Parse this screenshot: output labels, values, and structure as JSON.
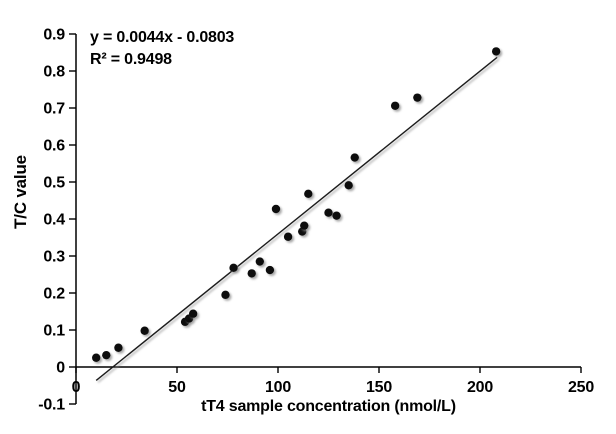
{
  "chart_data": {
    "type": "scatter",
    "title": "",
    "xlabel": "tT4 sample concentration (nmol/L)",
    "ylabel": "T/C value",
    "xlim": [
      0,
      250
    ],
    "ylim": [
      -0.1,
      0.9
    ],
    "grid": false,
    "legend": "none",
    "x_ticks": {
      "values": [
        0,
        50,
        100,
        150,
        200,
        250
      ],
      "labels": [
        "0",
        "50",
        "100",
        "150",
        "200",
        "250"
      ]
    },
    "y_ticks": {
      "values": [
        -0.1,
        0,
        0.1,
        0.2,
        0.3,
        0.4,
        0.5,
        0.6,
        0.7,
        0.8,
        0.9
      ],
      "labels": [
        "-0.1",
        "0",
        "0.1",
        "0.2",
        "0.3",
        "0.4",
        "0.5",
        "0.6",
        "0.7",
        "0.8",
        "0.9"
      ]
    },
    "marker": {
      "shape": "circle",
      "color": "#0a0a0a",
      "radius_px": 4.2
    },
    "axis_color": "#000000",
    "points": [
      [
        10,
        0.025
      ],
      [
        15,
        0.032
      ],
      [
        21,
        0.052
      ],
      [
        34,
        0.098
      ],
      [
        54,
        0.122
      ],
      [
        56,
        0.131
      ],
      [
        58,
        0.144
      ],
      [
        74,
        0.195
      ],
      [
        78,
        0.268
      ],
      [
        87,
        0.253
      ],
      [
        91,
        0.285
      ],
      [
        96,
        0.262
      ],
      [
        99,
        0.427
      ],
      [
        105,
        0.352
      ],
      [
        112,
        0.366
      ],
      [
        113,
        0.382
      ],
      [
        115,
        0.468
      ],
      [
        125,
        0.417
      ],
      [
        129,
        0.409
      ],
      [
        135,
        0.491
      ],
      [
        138,
        0.566
      ],
      [
        158,
        0.706
      ],
      [
        169,
        0.728
      ],
      [
        208,
        0.853
      ]
    ],
    "trendline": {
      "slope": 0.0044,
      "intercept": -0.0803,
      "x_start": 10,
      "x_end": 208.5,
      "color": "#1a1a1a"
    },
    "annotation": {
      "equation": "y = 0.0044x - 0.0803",
      "r_squared": "R² = 0.9498",
      "position": "top-left"
    }
  }
}
